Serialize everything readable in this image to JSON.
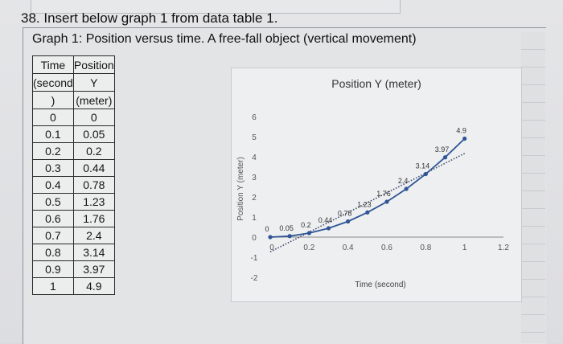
{
  "question": {
    "text": "38. Insert below graph 1 from data table 1."
  },
  "graph": {
    "title": "Graph 1: Position versus time. A free-fall object (vertical movement)"
  },
  "table": {
    "header": {
      "time": [
        "Time",
        "(second",
        ")"
      ],
      "position": [
        "Position",
        "Y",
        "(meter)"
      ]
    },
    "rows": [
      {
        "t": "0",
        "y": "0"
      },
      {
        "t": "0.1",
        "y": "0.05"
      },
      {
        "t": "0.2",
        "y": "0.2"
      },
      {
        "t": "0.3",
        "y": "0.44"
      },
      {
        "t": "0.4",
        "y": "0.78"
      },
      {
        "t": "0.5",
        "y": "1.23"
      },
      {
        "t": "0.6",
        "y": "1.76"
      },
      {
        "t": "0.7",
        "y": "2.4"
      },
      {
        "t": "0.8",
        "y": "3.14"
      },
      {
        "t": "0.9",
        "y": "3.97"
      },
      {
        "t": "1",
        "y": "4.9"
      }
    ]
  },
  "chart_data": {
    "type": "scatter",
    "title": "Position Y (meter)",
    "xlabel": "Time (second)",
    "ylabel": "Position Y (meter)",
    "xlim": [
      0,
      1.2
    ],
    "ylim": [
      -2,
      6
    ],
    "x_ticks": [
      "0.2",
      "0.4",
      "0.6",
      "0.8",
      "1",
      "1.2"
    ],
    "y_ticks": [
      "-2",
      "-1",
      "0",
      "1",
      "2",
      "3",
      "4",
      "5",
      "6"
    ],
    "origin_label": "0",
    "series": [
      {
        "x": [
          0,
          0.1,
          0.2,
          0.3,
          0.4,
          0.5,
          0.6,
          0.7,
          0.8,
          0.9,
          1
        ],
        "y": [
          0,
          0.05,
          0.2,
          0.44,
          0.78,
          1.23,
          1.76,
          2.4,
          3.14,
          3.97,
          4.9
        ]
      }
    ],
    "data_labels": [
      "0",
      "0.05",
      "0.2",
      "0.44",
      "0.78",
      "1.23",
      "1.76",
      "2.4",
      "3.14",
      "3.97",
      "4.9"
    ],
    "trendline": "dotted",
    "grid": false,
    "line_color": "#2f5597",
    "trend_color": "#3b4a6b"
  }
}
